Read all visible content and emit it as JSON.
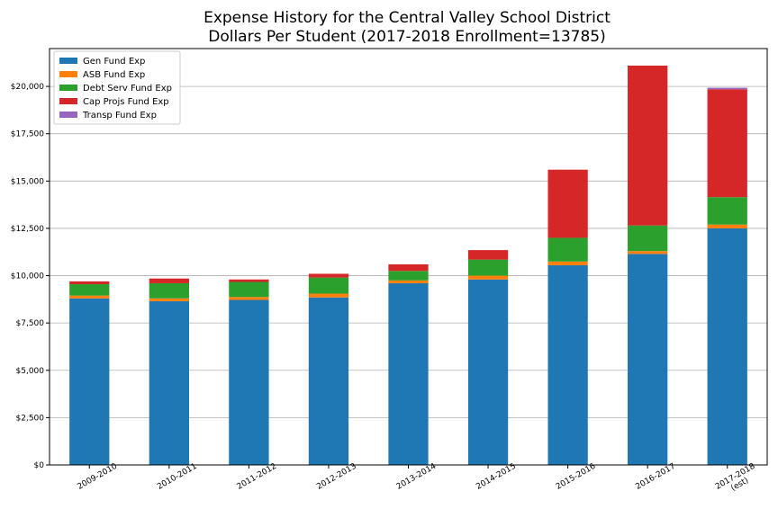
{
  "chart_data": {
    "type": "bar",
    "stacked": true,
    "title_lines": [
      "Expense History for the Central Valley School District",
      "Dollars Per Student (2017-2018 Enrollment=13785)"
    ],
    "xlabel": "",
    "ylabel": "",
    "categories": [
      [
        "2009-2010"
      ],
      [
        "2010-2011"
      ],
      [
        "2011-2012"
      ],
      [
        "2012-2013"
      ],
      [
        "2013-2014"
      ],
      [
        "2014-2015"
      ],
      [
        "2015-2016"
      ],
      [
        "2016-2017"
      ],
      [
        "2017-2018",
        "(est)"
      ]
    ],
    "ylim": [
      0,
      22000
    ],
    "yticks": [
      0,
      2500,
      5000,
      7500,
      10000,
      12500,
      15000,
      17500,
      20000
    ],
    "ytick_labels": [
      "$0",
      "$2,500",
      "$5,000",
      "$7,500",
      "$10,000",
      "$12,500",
      "$15,000",
      "$17,500",
      "$20,000"
    ],
    "grid": "horizontal",
    "legend_position": "upper-left",
    "series": [
      {
        "name": "Gen Fund Exp",
        "color": "#1f77b4",
        "values": [
          8800,
          8650,
          8720,
          8850,
          9600,
          9800,
          10550,
          11150,
          12500
        ]
      },
      {
        "name": "ASB Fund Exp",
        "color": "#ff7f0e",
        "values": [
          150,
          150,
          150,
          200,
          150,
          200,
          200,
          150,
          200
        ]
      },
      {
        "name": "Debt Serv Fund Exp",
        "color": "#2ca02c",
        "values": [
          600,
          800,
          800,
          850,
          500,
          850,
          1250,
          1350,
          1450
        ]
      },
      {
        "name": "Cap Projs Fund Exp",
        "color": "#d62728",
        "values": [
          150,
          250,
          130,
          200,
          350,
          500,
          3600,
          8450,
          5700
        ]
      },
      {
        "name": "Transp Fund Exp",
        "color": "#9467bd",
        "values": [
          0,
          0,
          0,
          0,
          0,
          0,
          0,
          0,
          80
        ]
      }
    ]
  }
}
